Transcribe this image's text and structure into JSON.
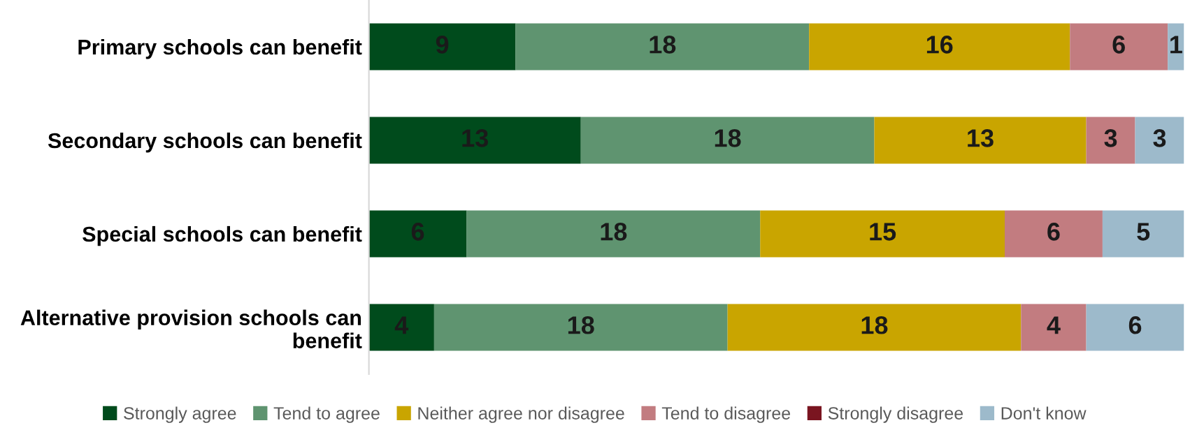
{
  "chart_data": {
    "type": "bar",
    "orientation": "horizontal",
    "stacked": true,
    "legend": "bottom",
    "grid": false,
    "categories": [
      "Primary schools can benefit",
      "Secondary schools can benefit",
      "Special schools can benefit",
      "Alternative provision schools can benefit"
    ],
    "series": [
      {
        "name": "Strongly agree",
        "color": "#004b1c",
        "values": [
          9,
          13,
          6,
          4
        ],
        "value_labels": [
          "9",
          "13",
          "6",
          "4"
        ]
      },
      {
        "name": "Tend to agree",
        "color": "#5f9470",
        "values": [
          18,
          18,
          18,
          18
        ],
        "value_labels": [
          "18",
          "18",
          "18",
          "18"
        ]
      },
      {
        "name": "Neither agree nor disagree",
        "color": "#c9a500",
        "values": [
          16,
          13,
          15,
          18
        ],
        "value_labels": [
          "16",
          "13",
          "15",
          "18"
        ]
      },
      {
        "name": "Tend to disagree",
        "color": "#c27c80",
        "values": [
          6,
          3,
          6,
          4
        ],
        "value_labels": [
          "6",
          "3",
          "6",
          "4"
        ]
      },
      {
        "name": "Strongly disagree",
        "color": "#7a1520",
        "values": [
          0,
          0,
          0,
          0
        ],
        "value_labels": [
          null,
          null,
          null,
          null
        ]
      },
      {
        "name": "Don't know",
        "color": "#9dbacb",
        "values": [
          1,
          3,
          5,
          6
        ],
        "value_labels": [
          "1",
          "3",
          "5",
          "6"
        ]
      }
    ]
  }
}
